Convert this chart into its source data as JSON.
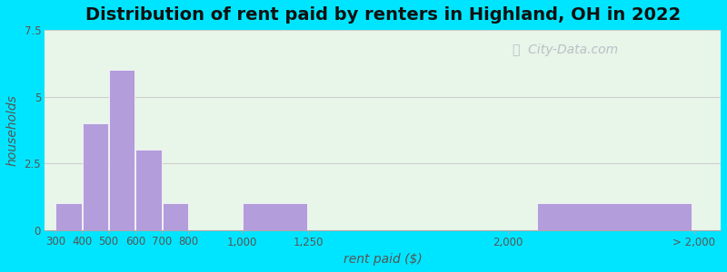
{
  "title": "Distribution of rent paid by renters in Highland, OH in 2022",
  "xlabel": "rent paid ($)",
  "ylabel": "households",
  "bar_color": "#b39ddb",
  "background_outer": "#00e5ff",
  "background_inner": "#e8f5e9",
  "ylim": [
    0,
    7.5
  ],
  "yticks": [
    0,
    2.5,
    5,
    7.5
  ],
  "title_fontsize": 14,
  "axis_label_fontsize": 10,
  "tick_fontsize": 8.5,
  "watermark_text": "City-Data.com",
  "watermark_color": "#b0b8c0",
  "bars": [
    {
      "x_left": 300,
      "x_right": 400,
      "height": 1
    },
    {
      "x_left": 400,
      "x_right": 500,
      "height": 4
    },
    {
      "x_left": 500,
      "x_right": 600,
      "height": 6
    },
    {
      "x_left": 600,
      "x_right": 700,
      "height": 3
    },
    {
      "x_left": 700,
      "x_right": 800,
      "height": 1
    },
    {
      "x_left": 1000,
      "x_right": 1250,
      "height": 1
    },
    {
      "x_left": 2100,
      "x_right": 2700,
      "height": 1
    }
  ],
  "xtick_positions": [
    300,
    400,
    500,
    600,
    700,
    800,
    1000,
    1250,
    2000,
    2700
  ],
  "xtick_labels": [
    "300",
    "400",
    "500",
    "600",
    "700",
    "800",
    "1,000",
    "1,250",
    "2,000",
    "> 2,000"
  ],
  "xlim": [
    260,
    2800
  ]
}
